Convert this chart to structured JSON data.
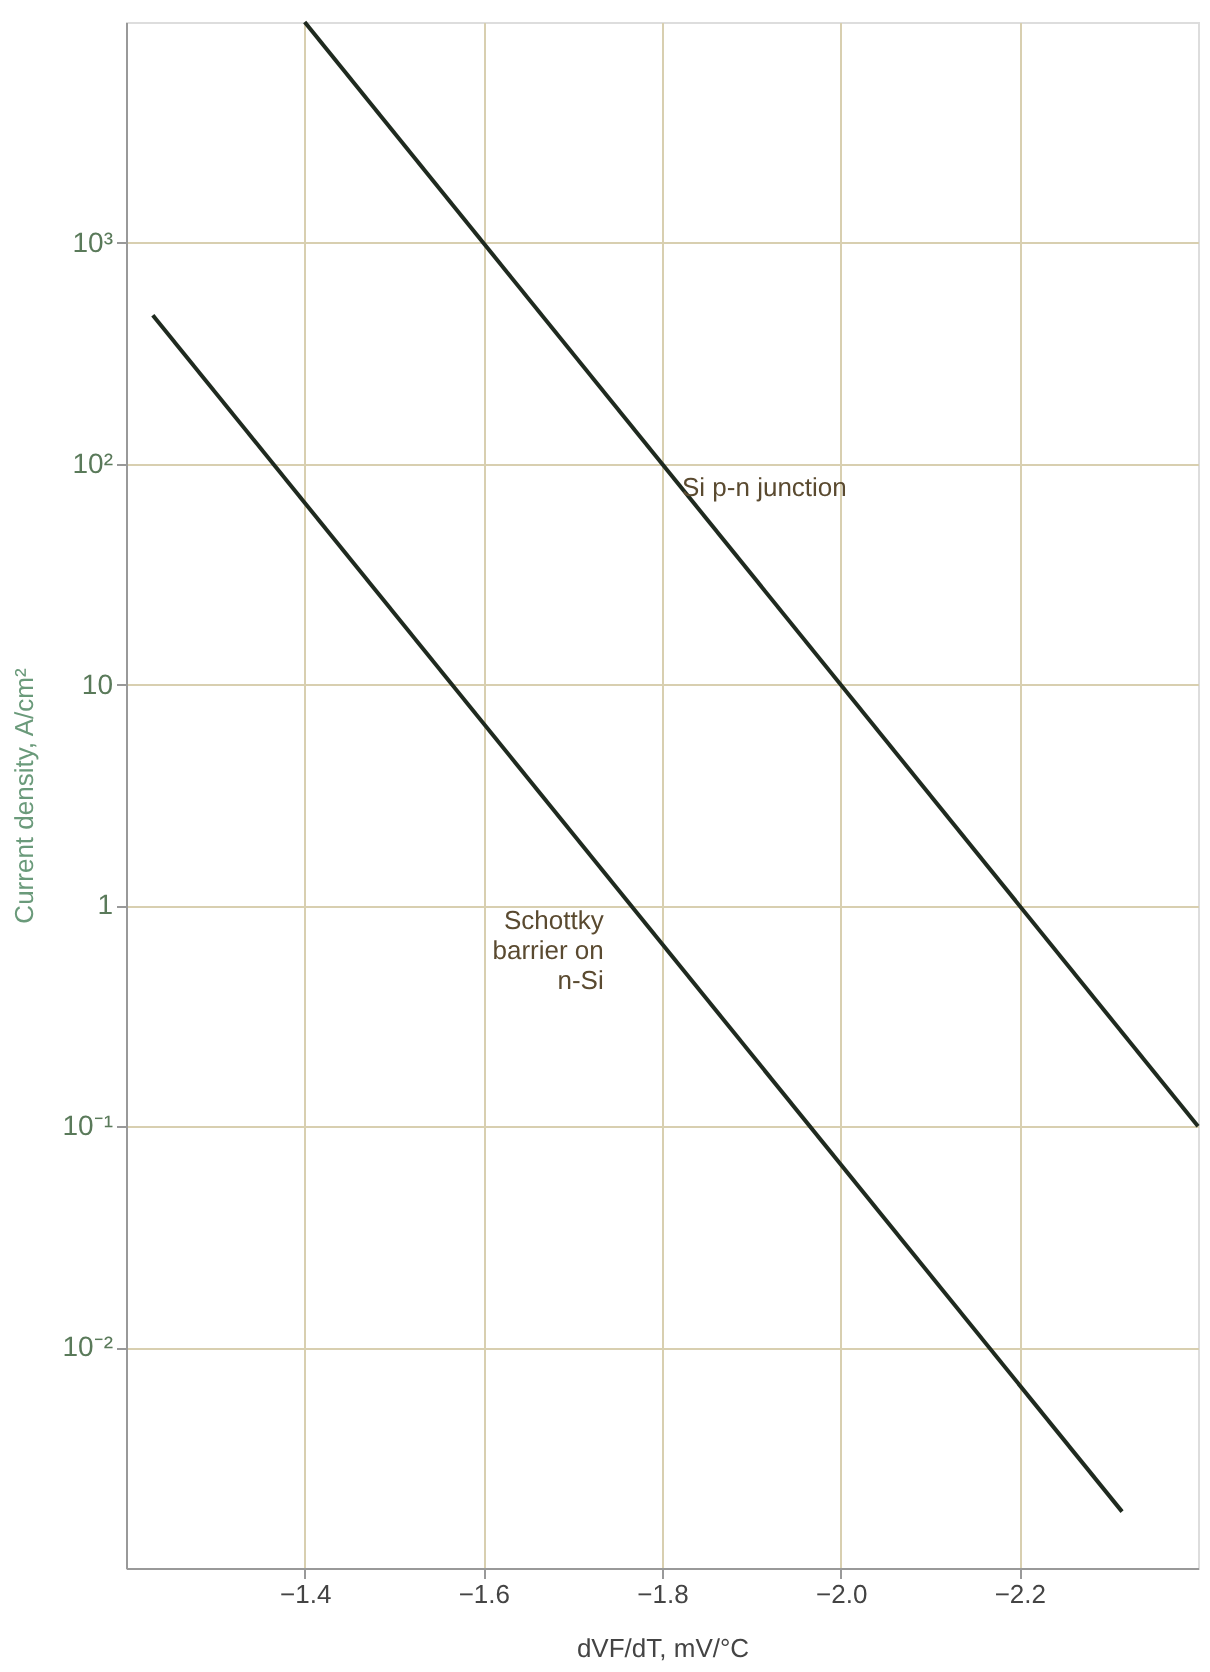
{
  "chart_data": {
    "type": "line",
    "xlabel": "dVF/dT, mV/°C",
    "ylabel": "Current density, A/cm²",
    "log": "y",
    "grid": true,
    "legend": false,
    "line_style": "solid",
    "marker": "none",
    "xlim": [
      -1.2,
      -2.4
    ],
    "xticks": [
      -1.4,
      -1.6,
      -1.8,
      {
        "value": -2.0,
        "label": "−2.0"
      },
      -2.2
    ],
    "ylim": [
      0.001,
      10000
    ],
    "yticks": [
      {
        "value": 1000,
        "label": "10³"
      },
      {
        "value": 100,
        "label": "10²"
      },
      10,
      1,
      {
        "value": 0.1,
        "label": "10⁻¹"
      },
      {
        "value": 0.01,
        "label": "10⁻²"
      }
    ],
    "series": [
      {
        "name": "Si p-n junction",
        "color": "#1f2a1f",
        "x": [
          -1.4,
          -2.4
        ],
        "values": [
          10000,
          0.1
        ]
      },
      {
        "name": "Schottky\nbarrier on\nn-Si",
        "color": "#1f2a1f",
        "x": [
          -1.23,
          -2.315
        ],
        "values": [
          470,
          0.0018
        ]
      }
    ]
  }
}
